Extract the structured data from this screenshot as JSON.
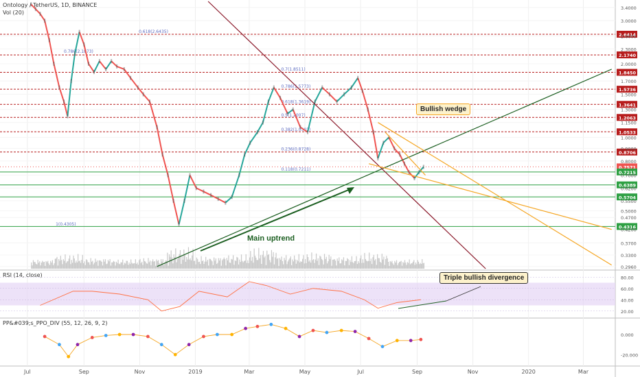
{
  "header": {
    "title": "Ontology / TetherUS, 1D, BINANCE",
    "vol_label": "Vol (20)",
    "rsi_label": "RSI (14, close)",
    "ppo_label": "PP&#039;s_PPO_DIV (55, 12, 26, 9, 2)"
  },
  "annotations": {
    "wedge": "Bullish wedge",
    "uptrend": "Main uptrend",
    "divergence": "Triple bullish divergence"
  },
  "colors": {
    "price_up": "#26a69a",
    "price_down": "#ef5350",
    "resist_line": "#b71c1c",
    "support_line": "#2ea043",
    "uptrend_line": "#1b5e20",
    "downtrend_line": "#8b1a2b",
    "wedge_line": "#f5a623",
    "rsi_line": "#ff7043",
    "rsi_band": "#e6d6f5",
    "volume": "#c8c8c8"
  },
  "chart_data": {
    "type": "line",
    "price_axis": {
      "ticks": [
        "3.4000",
        "3.0000",
        "2.6000",
        "2.3000",
        "2.0000",
        "1.7000",
        "1.5000",
        "1.3000",
        "1.1500",
        "1.0000",
        "0.9000",
        "0.8000",
        "0.7000",
        "0.6200",
        "0.5500",
        "0.5000",
        "0.4700",
        "0.4200",
        "0.3700",
        "0.3300",
        "0.2960"
      ],
      "tick_values": [
        3.4,
        3.0,
        2.6,
        2.3,
        2.0,
        1.7,
        1.5,
        1.3,
        1.15,
        1.0,
        0.9,
        0.8,
        0.7,
        0.62,
        0.55,
        0.5,
        0.47,
        0.42,
        0.37,
        0.33,
        0.296
      ],
      "scale": "log",
      "range": [
        0.29,
        3.6
      ]
    },
    "price_levels": [
      {
        "label": "2.6414",
        "value": 2.6414,
        "kind": "resist"
      },
      {
        "label": "2.1740",
        "value": 2.174,
        "kind": "resist"
      },
      {
        "label": "1.8450",
        "value": 1.845,
        "kind": "resist"
      },
      {
        "label": "1.5736",
        "value": 1.5736,
        "kind": "resist"
      },
      {
        "label": "1.3641",
        "value": 1.3641,
        "kind": "resist"
      },
      {
        "label": "1.2063",
        "value": 1.2063,
        "kind": "resist"
      },
      {
        "label": "1.0533",
        "value": 1.0533,
        "kind": "resist"
      },
      {
        "label": "0.8706",
        "value": 0.8706,
        "kind": "resist"
      },
      {
        "label": "0.7571",
        "value": 0.7571,
        "kind": "current"
      },
      {
        "label": "0.7215",
        "value": 0.7215,
        "kind": "support"
      },
      {
        "label": "0.6389",
        "value": 0.6389,
        "kind": "support"
      },
      {
        "label": "0.5704",
        "value": 0.5704,
        "kind": "support"
      },
      {
        "label": "0.4316",
        "value": 0.4316,
        "kind": "support"
      }
    ],
    "fib_labels": [
      {
        "text": "0.618(2.6435)",
        "value": 2.6435,
        "x": "2018-10-31"
      },
      {
        "text": "0.786(2.1873)",
        "value": 2.1873,
        "x": "2018-08-10"
      },
      {
        "text": "0.7(1.8511)",
        "value": 1.8511,
        "x": "2019-04-05"
      },
      {
        "text": "0.786(1.5773)",
        "value": 1.5773,
        "x": "2019-04-05"
      },
      {
        "text": "0.618(1.3619)",
        "value": 1.3619,
        "x": "2019-04-05"
      },
      {
        "text": "0.5(1.2007)",
        "value": 1.2007,
        "x": "2019-04-05"
      },
      {
        "text": "0.382(1.0501)",
        "value": 1.0501,
        "x": "2019-04-05"
      },
      {
        "text": "0.236(0.8728)",
        "value": 0.8728,
        "x": "2019-04-05"
      },
      {
        "text": "0.118(0.7211)",
        "value": 0.7211,
        "x": "2019-04-05"
      },
      {
        "text": "1(0.4305)",
        "value": 0.4305,
        "x": "2018-08-01"
      }
    ],
    "x_axis": {
      "ticks": [
        "Jul",
        "Sep",
        "Nov",
        "2019",
        "Mar",
        "May",
        "Jul",
        "Sep",
        "Nov",
        "2020",
        "Mar"
      ],
      "tick_dates": [
        "2018-07-01",
        "2018-09-01",
        "2018-11-01",
        "2019-01-01",
        "2019-03-01",
        "2019-05-01",
        "2019-07-01",
        "2019-09-01",
        "2019-11-01",
        "2020-01-01",
        "2020-03-01"
      ]
    },
    "price_series": [
      {
        "x": "2018-07-05",
        "y": 3.5
      },
      {
        "x": "2018-07-10",
        "y": 3.35
      },
      {
        "x": "2018-07-15",
        "y": 3.2
      },
      {
        "x": "2018-07-20",
        "y": 3.0
      },
      {
        "x": "2018-07-25",
        "y": 2.5
      },
      {
        "x": "2018-07-30",
        "y": 2.0
      },
      {
        "x": "2018-08-05",
        "y": 1.6
      },
      {
        "x": "2018-08-10",
        "y": 1.4
      },
      {
        "x": "2018-08-14",
        "y": 1.22
      },
      {
        "x": "2018-08-18",
        "y": 1.7
      },
      {
        "x": "2018-08-22",
        "y": 2.2
      },
      {
        "x": "2018-08-27",
        "y": 2.7
      },
      {
        "x": "2018-09-01",
        "y": 2.4
      },
      {
        "x": "2018-09-06",
        "y": 2.0
      },
      {
        "x": "2018-09-12",
        "y": 1.85
      },
      {
        "x": "2018-09-18",
        "y": 2.05
      },
      {
        "x": "2018-09-25",
        "y": 1.9
      },
      {
        "x": "2018-10-01",
        "y": 2.05
      },
      {
        "x": "2018-10-07",
        "y": 1.95
      },
      {
        "x": "2018-10-15",
        "y": 1.9
      },
      {
        "x": "2018-10-22",
        "y": 1.75
      },
      {
        "x": "2018-10-30",
        "y": 1.6
      },
      {
        "x": "2018-11-05",
        "y": 1.5
      },
      {
        "x": "2018-11-12",
        "y": 1.4
      },
      {
        "x": "2018-11-20",
        "y": 1.1
      },
      {
        "x": "2018-11-26",
        "y": 0.85
      },
      {
        "x": "2018-12-02",
        "y": 0.7
      },
      {
        "x": "2018-12-08",
        "y": 0.55
      },
      {
        "x": "2018-12-14",
        "y": 0.44
      },
      {
        "x": "2018-12-20",
        "y": 0.55
      },
      {
        "x": "2018-12-26",
        "y": 0.7
      },
      {
        "x": "2019-01-02",
        "y": 0.62
      },
      {
        "x": "2019-01-10",
        "y": 0.6
      },
      {
        "x": "2019-01-18",
        "y": 0.58
      },
      {
        "x": "2019-01-26",
        "y": 0.56
      },
      {
        "x": "2019-02-03",
        "y": 0.54
      },
      {
        "x": "2019-02-10",
        "y": 0.57
      },
      {
        "x": "2019-02-18",
        "y": 0.7
      },
      {
        "x": "2019-02-24",
        "y": 0.85
      },
      {
        "x": "2019-03-02",
        "y": 0.95
      },
      {
        "x": "2019-03-10",
        "y": 1.05
      },
      {
        "x": "2019-03-16",
        "y": 1.15
      },
      {
        "x": "2019-03-22",
        "y": 1.4
      },
      {
        "x": "2019-03-28",
        "y": 1.6
      },
      {
        "x": "2019-04-04",
        "y": 1.45
      },
      {
        "x": "2019-04-12",
        "y": 1.25
      },
      {
        "x": "2019-04-18",
        "y": 1.3
      },
      {
        "x": "2019-04-26",
        "y": 1.1
      },
      {
        "x": "2019-05-04",
        "y": 1.05
      },
      {
        "x": "2019-05-12",
        "y": 1.4
      },
      {
        "x": "2019-05-20",
        "y": 1.6
      },
      {
        "x": "2019-05-28",
        "y": 1.5
      },
      {
        "x": "2019-06-05",
        "y": 1.4
      },
      {
        "x": "2019-06-13",
        "y": 1.5
      },
      {
        "x": "2019-06-21",
        "y": 1.6
      },
      {
        "x": "2019-06-28",
        "y": 1.75
      },
      {
        "x": "2019-07-03",
        "y": 1.55
      },
      {
        "x": "2019-07-09",
        "y": 1.3
      },
      {
        "x": "2019-07-15",
        "y": 1.05
      },
      {
        "x": "2019-07-20",
        "y": 0.82
      },
      {
        "x": "2019-07-26",
        "y": 0.95
      },
      {
        "x": "2019-08-01",
        "y": 1.0
      },
      {
        "x": "2019-08-07",
        "y": 0.9
      },
      {
        "x": "2019-08-13",
        "y": 0.85
      },
      {
        "x": "2019-08-18",
        "y": 0.78
      },
      {
        "x": "2019-08-23",
        "y": 0.72
      },
      {
        "x": "2019-08-29",
        "y": 0.68
      },
      {
        "x": "2019-09-03",
        "y": 0.72
      },
      {
        "x": "2019-09-08",
        "y": 0.757
      }
    ],
    "volume_series": [
      {
        "x": "2018-07-15",
        "v": 0.2
      },
      {
        "x": "2018-08-15",
        "v": 0.35
      },
      {
        "x": "2018-09-15",
        "v": 0.25
      },
      {
        "x": "2018-10-15",
        "v": 0.2
      },
      {
        "x": "2018-11-15",
        "v": 0.25
      },
      {
        "x": "2018-12-15",
        "v": 0.55
      },
      {
        "x": "2019-01-15",
        "v": 0.3
      },
      {
        "x": "2019-02-15",
        "v": 0.35
      },
      {
        "x": "2019-03-15",
        "v": 0.55
      },
      {
        "x": "2019-04-15",
        "v": 0.35
      },
      {
        "x": "2019-05-15",
        "v": 0.4
      },
      {
        "x": "2019-06-15",
        "v": 0.3
      },
      {
        "x": "2019-07-15",
        "v": 0.4
      },
      {
        "x": "2019-08-15",
        "v": 0.2
      }
    ],
    "rsi": {
      "ticks": [
        "80.00",
        "60.00",
        "40.00",
        "20.00"
      ],
      "tick_values": [
        80,
        60,
        40,
        20
      ],
      "band": [
        30,
        70
      ],
      "series": [
        {
          "x": "2018-07-15",
          "y": 30
        },
        {
          "x": "2018-08-20",
          "y": 55
        },
        {
          "x": "2018-09-10",
          "y": 55
        },
        {
          "x": "2018-10-10",
          "y": 50
        },
        {
          "x": "2018-11-10",
          "y": 40
        },
        {
          "x": "2018-11-25",
          "y": 20
        },
        {
          "x": "2018-12-15",
          "y": 28
        },
        {
          "x": "2019-01-05",
          "y": 55
        },
        {
          "x": "2019-02-05",
          "y": 45
        },
        {
          "x": "2019-03-01",
          "y": 72
        },
        {
          "x": "2019-03-20",
          "y": 65
        },
        {
          "x": "2019-04-15",
          "y": 50
        },
        {
          "x": "2019-05-10",
          "y": 60
        },
        {
          "x": "2019-06-10",
          "y": 55
        },
        {
          "x": "2019-07-05",
          "y": 40
        },
        {
          "x": "2019-07-20",
          "y": 25
        },
        {
          "x": "2019-08-10",
          "y": 35
        },
        {
          "x": "2019-09-05",
          "y": 40
        }
      ]
    },
    "ppo": {
      "ticks": [
        "0.000",
        "-20.000"
      ],
      "tick_values": [
        0,
        -20
      ],
      "series": [
        {
          "x": "2018-07-20",
          "y": -2
        },
        {
          "x": "2018-08-05",
          "y": -10
        },
        {
          "x": "2018-08-15",
          "y": -22
        },
        {
          "x": "2018-08-25",
          "y": -10
        },
        {
          "x": "2018-09-10",
          "y": -3
        },
        {
          "x": "2018-09-25",
          "y": -1
        },
        {
          "x": "2018-10-10",
          "y": 0
        },
        {
          "x": "2018-10-25",
          "y": 0
        },
        {
          "x": "2018-11-10",
          "y": -2
        },
        {
          "x": "2018-11-25",
          "y": -10
        },
        {
          "x": "2018-12-10",
          "y": -20
        },
        {
          "x": "2018-12-25",
          "y": -10
        },
        {
          "x": "2019-01-10",
          "y": -2
        },
        {
          "x": "2019-01-25",
          "y": 0
        },
        {
          "x": "2019-02-10",
          "y": 0
        },
        {
          "x": "2019-02-25",
          "y": 6
        },
        {
          "x": "2019-03-10",
          "y": 8
        },
        {
          "x": "2019-03-25",
          "y": 10
        },
        {
          "x": "2019-04-10",
          "y": 6
        },
        {
          "x": "2019-04-25",
          "y": -2
        },
        {
          "x": "2019-05-10",
          "y": 4
        },
        {
          "x": "2019-05-25",
          "y": 2
        },
        {
          "x": "2019-06-10",
          "y": 4
        },
        {
          "x": "2019-06-25",
          "y": 3
        },
        {
          "x": "2019-07-10",
          "y": -4
        },
        {
          "x": "2019-07-25",
          "y": -12
        },
        {
          "x": "2019-08-10",
          "y": -6
        },
        {
          "x": "2019-08-25",
          "y": -6
        },
        {
          "x": "2019-09-05",
          "y": -5
        }
      ]
    },
    "lines": {
      "uptrend": [
        {
          "x": "2018-11-20",
          "y": 0.296
        },
        {
          "x": "2020-04-01",
          "y": 1.9
        }
      ],
      "downtrend": [
        {
          "x": "2019-01-15",
          "y": 3.6
        },
        {
          "x": "2019-11-15",
          "y": 0.29
        }
      ],
      "wedge_upper": [
        {
          "x": "2019-07-20",
          "y": 1.15
        },
        {
          "x": "2020-04-01",
          "y": 0.3
        }
      ],
      "wedge_lower": [
        {
          "x": "2019-07-10",
          "y": 0.78
        },
        {
          "x": "2020-04-01",
          "y": 0.42
        }
      ],
      "wedge_extra": [
        {
          "x": "2019-07-28",
          "y": 1.05
        },
        {
          "x": "2019-09-10",
          "y": 0.7
        }
      ]
    }
  }
}
